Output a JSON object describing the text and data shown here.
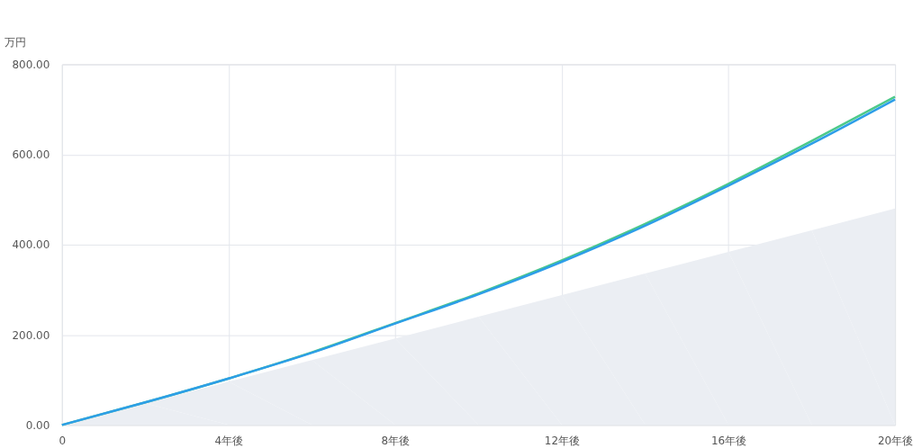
{
  "chart_data": {
    "type": "line",
    "ylabel": "万円",
    "x": [
      0,
      2,
      4,
      6,
      8,
      10,
      12,
      14,
      16,
      18,
      20
    ],
    "series": [
      {
        "type": "area",
        "color": "#ebeef3",
        "values": [
          0,
          48,
          96,
          144,
          192,
          240,
          288,
          336,
          384,
          432,
          480
        ]
      },
      {
        "color": "#4cc98a",
        "values": [
          0,
          50,
          103,
          161,
          226,
          292,
          365,
          446,
          535,
          630,
          728
        ]
      },
      {
        "color": "#2d9ee8",
        "values": [
          0,
          50,
          103,
          160,
          225,
          290,
          362,
          442,
          531,
          624,
          722
        ]
      }
    ],
    "xlim": [
      0,
      20
    ],
    "xticks": [
      {
        "value": 0,
        "label": "0"
      },
      {
        "value": 4,
        "label": "4年後"
      },
      {
        "value": 8,
        "label": "8年後"
      },
      {
        "value": 12,
        "label": "12年後"
      },
      {
        "value": 16,
        "label": "16年後"
      },
      {
        "value": 20,
        "label": "20年後"
      }
    ],
    "ylim": [
      0,
      800
    ],
    "yticks": [
      {
        "value": 0,
        "label": "0.00"
      },
      {
        "value": 200,
        "label": "200.00"
      },
      {
        "value": 400,
        "label": "400.00"
      },
      {
        "value": 600,
        "label": "600.00"
      },
      {
        "value": 800,
        "label": "800.00"
      }
    ],
    "grid": true,
    "marker": "none",
    "line_style": "solid"
  }
}
